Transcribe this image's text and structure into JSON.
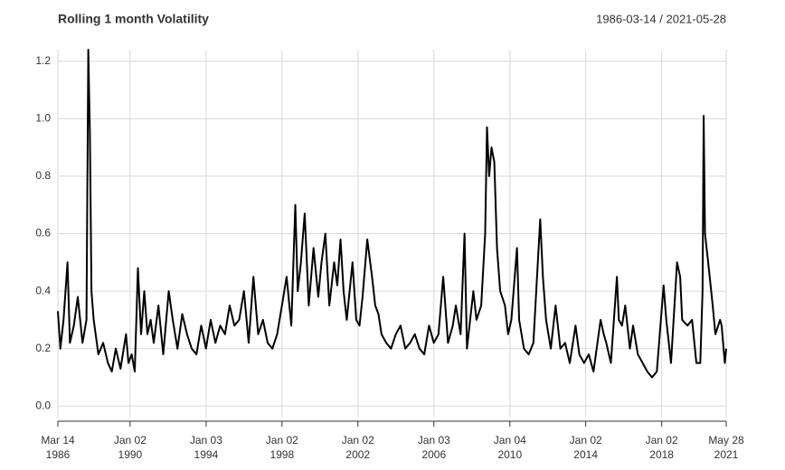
{
  "chart_data": {
    "type": "line",
    "title": "Rolling 1 month Volatility",
    "subtitle": "1986-03-14 / 2021-05-28",
    "x": [
      "1986-03-14",
      "1986-05-01",
      "1986-07-01",
      "1986-09-15",
      "1986-11-01",
      "1987-01-15",
      "1987-04-01",
      "1987-07-01",
      "1987-09-15",
      "1987-10-20",
      "1987-11-20",
      "1987-12-20",
      "1988-02-01",
      "1988-05-01",
      "1988-08-01",
      "1988-11-01",
      "1989-01-15",
      "1989-04-01",
      "1989-07-01",
      "1989-10-15",
      "1989-12-01",
      "1990-02-01",
      "1990-04-01",
      "1990-06-01",
      "1990-08-01",
      "1990-10-01",
      "1990-12-01",
      "1991-02-01",
      "1991-04-01",
      "1991-07-01",
      "1991-10-01",
      "1992-01-15",
      "1992-04-01",
      "1992-07-01",
      "1992-10-01",
      "1993-01-01",
      "1993-04-01",
      "1993-07-01",
      "1993-10-01",
      "1994-01-01",
      "1994-04-01",
      "1994-07-01",
      "1994-10-01",
      "1995-01-01",
      "1995-04-01",
      "1995-07-01",
      "1995-10-01",
      "1996-01-01",
      "1996-04-01",
      "1996-07-01",
      "1996-10-01",
      "1997-01-01",
      "1997-04-01",
      "1997-07-01",
      "1997-10-01",
      "1998-01-01",
      "1998-04-01",
      "1998-07-01",
      "1998-09-15",
      "1998-11-01",
      "1999-01-01",
      "1999-03-15",
      "1999-06-01",
      "1999-09-01",
      "1999-12-01",
      "2000-02-01",
      "2000-04-15",
      "2000-07-01",
      "2000-10-01",
      "2000-12-01",
      "2001-02-01",
      "2001-04-01",
      "2001-06-01",
      "2001-09-20",
      "2001-12-01",
      "2002-02-01",
      "2002-04-01",
      "2002-07-01",
      "2002-10-01",
      "2002-12-01",
      "2003-02-01",
      "2003-04-01",
      "2003-07-01",
      "2003-10-01",
      "2004-01-01",
      "2004-04-01",
      "2004-07-01",
      "2004-10-01",
      "2005-01-01",
      "2005-04-01",
      "2005-07-01",
      "2005-10-01",
      "2006-01-01",
      "2006-04-01",
      "2006-07-01",
      "2006-10-01",
      "2007-01-01",
      "2007-03-01",
      "2007-06-01",
      "2007-08-15",
      "2007-10-01",
      "2007-12-01",
      "2008-02-01",
      "2008-04-01",
      "2008-07-01",
      "2008-09-15",
      "2008-10-20",
      "2008-12-01",
      "2009-01-15",
      "2009-03-10",
      "2009-05-01",
      "2009-07-01",
      "2009-10-01",
      "2009-12-01",
      "2010-02-01",
      "2010-05-20",
      "2010-07-01",
      "2010-10-01",
      "2011-01-01",
      "2011-04-01",
      "2011-08-10",
      "2011-10-01",
      "2011-12-01",
      "2012-03-01",
      "2012-06-01",
      "2012-09-01",
      "2012-12-01",
      "2013-03-01",
      "2013-06-20",
      "2013-09-01",
      "2013-12-01",
      "2014-03-01",
      "2014-06-01",
      "2014-10-15",
      "2014-12-15",
      "2015-02-01",
      "2015-05-01",
      "2015-08-25",
      "2015-10-01",
      "2015-12-01",
      "2016-02-01",
      "2016-05-01",
      "2016-07-01",
      "2016-10-01",
      "2017-01-01",
      "2017-04-01",
      "2017-07-01",
      "2017-10-01",
      "2018-02-08",
      "2018-04-01",
      "2018-07-01",
      "2018-10-25",
      "2018-12-24",
      "2019-02-01",
      "2019-05-15",
      "2019-08-10",
      "2019-11-01",
      "2020-01-15",
      "2020-02-28",
      "2020-03-20",
      "2020-04-15",
      "2020-06-15",
      "2020-09-10",
      "2020-11-01",
      "2021-01-30",
      "2021-03-01",
      "2021-05-01",
      "2021-05-28"
    ],
    "series": [
      {
        "color": "#000000",
        "values": [
          0.33,
          0.2,
          0.3,
          0.5,
          0.22,
          0.28,
          0.38,
          0.22,
          0.3,
          1.24,
          0.95,
          0.4,
          0.3,
          0.18,
          0.22,
          0.15,
          0.12,
          0.2,
          0.13,
          0.25,
          0.15,
          0.18,
          0.12,
          0.48,
          0.25,
          0.4,
          0.25,
          0.3,
          0.22,
          0.35,
          0.18,
          0.4,
          0.3,
          0.2,
          0.32,
          0.25,
          0.2,
          0.18,
          0.28,
          0.2,
          0.3,
          0.22,
          0.28,
          0.25,
          0.35,
          0.28,
          0.3,
          0.4,
          0.22,
          0.45,
          0.25,
          0.3,
          0.22,
          0.2,
          0.25,
          0.35,
          0.45,
          0.28,
          0.7,
          0.4,
          0.5,
          0.67,
          0.35,
          0.55,
          0.38,
          0.5,
          0.6,
          0.35,
          0.5,
          0.42,
          0.58,
          0.4,
          0.3,
          0.5,
          0.3,
          0.28,
          0.38,
          0.58,
          0.45,
          0.35,
          0.32,
          0.25,
          0.22,
          0.2,
          0.25,
          0.28,
          0.2,
          0.22,
          0.25,
          0.2,
          0.18,
          0.28,
          0.22,
          0.25,
          0.45,
          0.22,
          0.28,
          0.35,
          0.25,
          0.6,
          0.2,
          0.3,
          0.4,
          0.3,
          0.35,
          0.6,
          0.97,
          0.8,
          0.9,
          0.85,
          0.55,
          0.4,
          0.35,
          0.25,
          0.3,
          0.55,
          0.3,
          0.2,
          0.18,
          0.22,
          0.65,
          0.45,
          0.3,
          0.2,
          0.35,
          0.2,
          0.22,
          0.15,
          0.28,
          0.18,
          0.15,
          0.18,
          0.12,
          0.3,
          0.25,
          0.22,
          0.15,
          0.45,
          0.3,
          0.28,
          0.35,
          0.2,
          0.28,
          0.18,
          0.15,
          0.12,
          0.1,
          0.12,
          0.42,
          0.3,
          0.15,
          0.5,
          0.45,
          0.3,
          0.28,
          0.3,
          0.15,
          0.15,
          0.4,
          1.01,
          0.6,
          0.5,
          0.35,
          0.25,
          0.3,
          0.28,
          0.15,
          0.2
        ]
      }
    ],
    "xlim": [
      "1986-03-14",
      "2021-05-28"
    ],
    "xticks": [
      {
        "value": "1986-03-14",
        "label": "Mar 14 1986"
      },
      {
        "value": "1990-01-02",
        "label": "Jan 02 1990"
      },
      {
        "value": "1994-01-03",
        "label": "Jan 03 1994"
      },
      {
        "value": "1998-01-02",
        "label": "Jan 02 1998"
      },
      {
        "value": "2002-01-02",
        "label": "Jan 02 2002"
      },
      {
        "value": "2006-01-03",
        "label": "Jan 03 2006"
      },
      {
        "value": "2010-01-04",
        "label": "Jan 04 2010"
      },
      {
        "value": "2014-01-02",
        "label": "Jan 02 2014"
      },
      {
        "value": "2018-01-02",
        "label": "Jan 02 2018"
      },
      {
        "value": "2021-05-28",
        "label": "May 28 2021"
      }
    ],
    "ylim": [
      -0.04,
      1.24
    ],
    "yticks": [
      {
        "value": 0,
        "label": "0.0"
      },
      0.2,
      0.4,
      0.6,
      0.8,
      {
        "value": 1,
        "label": "1.0"
      },
      1.2
    ],
    "grid": true
  }
}
